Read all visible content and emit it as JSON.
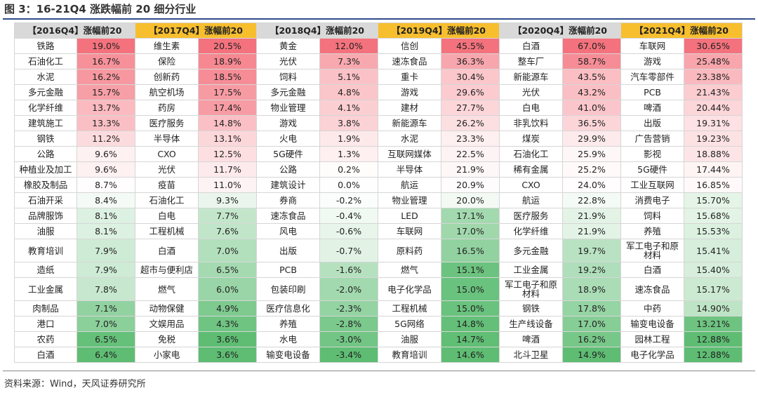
{
  "title": "图 3：16-21Q4 涨跌幅前 20 细分行业",
  "source": "资料来源：Wind，天风证券研究所",
  "colors": {
    "header_a": "#d9d9d9",
    "header_b": "#f7be2e",
    "high": "#f4727d",
    "low": "#5ebd73",
    "neutral": "#ffffff"
  },
  "columns": [
    {
      "header": "【2016Q4】涨幅前20",
      "rows": [
        [
          "铁路",
          "19.0%"
        ],
        [
          "石油化工",
          "16.7%"
        ],
        [
          "水泥",
          "16.2%"
        ],
        [
          "多元金融",
          "15.7%"
        ],
        [
          "化学纤维",
          "13.7%"
        ],
        [
          "建筑施工",
          "13.3%"
        ],
        [
          "钢铁",
          "11.2%"
        ],
        [
          "公路",
          "9.6%"
        ],
        [
          "种植业及加工",
          "9.6%"
        ],
        [
          "橡胶及制品",
          "8.7%"
        ],
        [
          "石油开采",
          "8.4%"
        ],
        [
          "品牌服饰",
          "8.1%"
        ],
        [
          "油服",
          "8.1%"
        ],
        [
          "教育培训",
          "7.9%"
        ],
        [
          "造纸",
          "7.9%"
        ],
        [
          "工业金属",
          "7.8%"
        ],
        [
          "肉制品",
          "7.1%"
        ],
        [
          "港口",
          "7.0%"
        ],
        [
          "农药",
          "6.5%"
        ],
        [
          "白酒",
          "6.4%"
        ]
      ]
    },
    {
      "header": "【2017Q4】涨幅前20",
      "rows": [
        [
          "维生素",
          "20.5%"
        ],
        [
          "保险",
          "18.9%"
        ],
        [
          "创新药",
          "18.5%"
        ],
        [
          "航空机场",
          "17.5%"
        ],
        [
          "药房",
          "17.4%"
        ],
        [
          "医疗服务",
          "14.8%"
        ],
        [
          "半导体",
          "13.1%"
        ],
        [
          "CXO",
          "12.5%"
        ],
        [
          "光伏",
          "11.7%"
        ],
        [
          "疫苗",
          "11.0%"
        ],
        [
          "石油化工",
          "9.3%"
        ],
        [
          "白电",
          "7.7%"
        ],
        [
          "工程机械",
          "7.6%"
        ],
        [
          "白酒",
          "7.0%"
        ],
        [
          "超市与便利店",
          "6.5%"
        ],
        [
          "燃气",
          "6.0%"
        ],
        [
          "动物保健",
          "4.9%"
        ],
        [
          "文娱用品",
          "4.3%"
        ],
        [
          "免税",
          "3.6%"
        ],
        [
          "小家电",
          "3.6%"
        ]
      ]
    },
    {
      "header": "【2018Q4】涨幅前20",
      "rows": [
        [
          "黄金",
          "12.0%"
        ],
        [
          "光伏",
          "7.3%"
        ],
        [
          "饲料",
          "5.1%"
        ],
        [
          "多元金融",
          "4.8%"
        ],
        [
          "物业管理",
          "4.1%"
        ],
        [
          "游戏",
          "3.8%"
        ],
        [
          "火电",
          "1.9%"
        ],
        [
          "5G硬件",
          "1.3%"
        ],
        [
          "公路",
          "0.2%"
        ],
        [
          "建筑设计",
          "0.0%"
        ],
        [
          "券商",
          "-0.2%"
        ],
        [
          "速冻食品",
          "-0.4%"
        ],
        [
          "风电",
          "-0.6%"
        ],
        [
          "出版",
          "-0.7%"
        ],
        [
          "PCB",
          "-1.6%"
        ],
        [
          "包装印刷",
          "-2.0%"
        ],
        [
          "医疗信息化",
          "-2.3%"
        ],
        [
          "养殖",
          "-2.8%"
        ],
        [
          "水电",
          "-3.0%"
        ],
        [
          "输变电设备",
          "-3.4%"
        ]
      ]
    },
    {
      "header": "【2019Q4】涨幅前20",
      "rows": [
        [
          "信创",
          "45.5%"
        ],
        [
          "速冻食品",
          "36.3%"
        ],
        [
          "重卡",
          "30.4%"
        ],
        [
          "游戏",
          "29.6%"
        ],
        [
          "建材",
          "27.7%"
        ],
        [
          "新能源车",
          "26.2%"
        ],
        [
          "水泥",
          "23.3%"
        ],
        [
          "互联网媒体",
          "22.5%"
        ],
        [
          "半导体",
          "21.9%"
        ],
        [
          "航运",
          "20.9%"
        ],
        [
          "物业管理",
          "20.0%"
        ],
        [
          "LED",
          "17.1%"
        ],
        [
          "车联网",
          "17.0%"
        ],
        [
          "原料药",
          "16.5%"
        ],
        [
          "燃气",
          "15.1%"
        ],
        [
          "电子化学品",
          "15.0%"
        ],
        [
          "工程机械",
          "15.0%"
        ],
        [
          "5G网络",
          "14.8%"
        ],
        [
          "油服",
          "14.7%"
        ],
        [
          "教育培训",
          "14.6%"
        ]
      ]
    },
    {
      "header": "【2020Q4】涨幅前20",
      "rows": [
        [
          "白酒",
          "67.0%"
        ],
        [
          "整车厂",
          "58.7%"
        ],
        [
          "新能源车",
          "43.5%"
        ],
        [
          "光伏",
          "43.2%"
        ],
        [
          "白电",
          "41.0%"
        ],
        [
          "非乳饮料",
          "36.5%"
        ],
        [
          "煤炭",
          "29.9%"
        ],
        [
          "石油化工",
          "25.9%"
        ],
        [
          "稀有金属",
          "25.2%"
        ],
        [
          "CXO",
          "24.0%"
        ],
        [
          "航运",
          "22.8%"
        ],
        [
          "医疗服务",
          "21.9%"
        ],
        [
          "化学纤维",
          "21.9%"
        ],
        [
          "多元金融",
          "19.7%"
        ],
        [
          "工业金属",
          "19.2%"
        ],
        [
          "军工电子和原材料",
          "18.9%"
        ],
        [
          "钢铁",
          "17.8%"
        ],
        [
          "生产线设备",
          "17.0%"
        ],
        [
          "啤酒",
          "16.2%"
        ],
        [
          "北斗卫星",
          "14.9%"
        ]
      ]
    },
    {
      "header": "【2021Q4】涨幅前20",
      "rows": [
        [
          "车联网",
          "30.65%"
        ],
        [
          "游戏",
          "25.48%"
        ],
        [
          "汽车零部件",
          "23.38%"
        ],
        [
          "PCB",
          "21.43%"
        ],
        [
          "啤酒",
          "20.44%"
        ],
        [
          "出版",
          "19.31%"
        ],
        [
          "广告营销",
          "19.23%"
        ],
        [
          "影视",
          "18.88%"
        ],
        [
          "5G硬件",
          "17.44%"
        ],
        [
          "工业互联网",
          "16.85%"
        ],
        [
          "消费电子",
          "15.70%"
        ],
        [
          "饲料",
          "15.68%"
        ],
        [
          "养殖",
          "15.53%"
        ],
        [
          "军工电子和原材料",
          "15.41%"
        ],
        [
          "白酒",
          "15.40%"
        ],
        [
          "速冻食品",
          "15.17%"
        ],
        [
          "中药",
          "14.90%"
        ],
        [
          "输变电设备",
          "13.21%"
        ],
        [
          "园林工程",
          "12.88%"
        ],
        [
          "电子化学品",
          "12.88%"
        ]
      ]
    }
  ]
}
